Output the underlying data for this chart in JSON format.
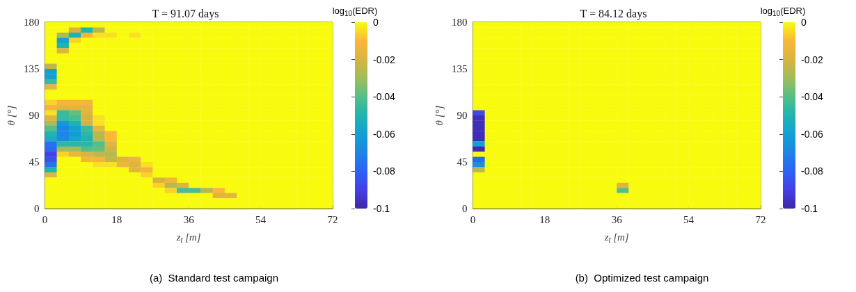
{
  "chart_data": [
    {
      "type": "heatmap",
      "title": "T = 91.07 days",
      "xlabel": "z$_{t}$ [m]",
      "ylabel": "θ [°]",
      "clabel": "log$_{10}$(EDR)",
      "annotations": [
        "(a)  Standard test campaign"
      ],
      "x": [
        1.5,
        4.5,
        7.5,
        10.5,
        13.5,
        16.5,
        19.5,
        22.5,
        25.5,
        28.5,
        31.5,
        34.5,
        37.5,
        40.5,
        43.5,
        46.5,
        49.5,
        52.5,
        55.5,
        58.5,
        61.5,
        64.5,
        67.5,
        70.5
      ],
      "xlim": [
        0,
        72
      ],
      "xticks": [
        0,
        18,
        36,
        54,
        72
      ],
      "ylim": [
        0,
        180
      ],
      "yticks": [
        0,
        45,
        90,
        135,
        180
      ],
      "clim": [
        -0.1,
        0
      ],
      "cticks": [
        0,
        -0.02,
        -0.04,
        -0.06,
        -0.08,
        -0.1
      ],
      "cells": [
        [
          0,
          0,
          0,
          0,
          0,
          0,
          0,
          0,
          0,
          0,
          0,
          0,
          0,
          0,
          0,
          0,
          0,
          0,
          0,
          0,
          0,
          0,
          0,
          0
        ],
        [
          0,
          0,
          -0.02,
          -0.05,
          -0.025,
          0,
          0,
          0,
          0,
          0,
          0,
          0,
          0,
          0,
          0,
          0,
          0,
          0,
          0,
          0,
          0,
          0,
          0,
          0
        ],
        [
          0,
          -0.028,
          -0.05,
          -0.012,
          -0.004,
          -0.004,
          0,
          -0.004,
          0,
          0,
          0,
          0,
          0,
          0,
          0,
          0,
          0,
          0,
          0,
          0,
          0,
          0,
          0,
          0
        ],
        [
          0,
          -0.06,
          -0.006,
          0,
          0,
          0,
          0,
          0,
          0,
          0,
          0,
          0,
          0,
          0,
          0,
          0,
          0,
          0,
          0,
          0,
          0,
          0,
          0,
          0
        ],
        [
          0,
          -0.05,
          0,
          0,
          0,
          0,
          0,
          0,
          0,
          0,
          0,
          0,
          0,
          0,
          0,
          0,
          0,
          0,
          0,
          0,
          0,
          0,
          0,
          0
        ],
        [
          0,
          -0.018,
          0,
          0,
          0,
          0,
          0,
          0,
          0,
          0,
          0,
          0,
          0,
          0,
          0,
          0,
          0,
          0,
          0,
          0,
          0,
          0,
          0,
          0
        ],
        [
          0,
          0,
          0,
          0,
          0,
          0,
          0,
          0,
          0,
          0,
          0,
          0,
          0,
          0,
          0,
          0,
          0,
          0,
          0,
          0,
          0,
          0,
          0,
          0
        ],
        [
          0,
          0,
          0,
          0,
          0,
          0,
          0,
          0,
          0,
          0,
          0,
          0,
          0,
          0,
          0,
          0,
          0,
          0,
          0,
          0,
          0,
          0,
          0,
          0
        ],
        [
          -0.025,
          0,
          0,
          0,
          0,
          0,
          0,
          0,
          0,
          0,
          0,
          0,
          0,
          0,
          0,
          0,
          0,
          0,
          0,
          0,
          0,
          0,
          0,
          0
        ],
        [
          -0.06,
          0,
          0,
          0,
          0,
          0,
          0,
          0,
          0,
          0,
          0,
          0,
          0,
          0,
          0,
          0,
          0,
          0,
          0,
          0,
          0,
          0,
          0,
          0
        ],
        [
          -0.06,
          0,
          0,
          0,
          0,
          0,
          0,
          0,
          0,
          0,
          0,
          0,
          0,
          0,
          0,
          0,
          0,
          0,
          0,
          0,
          0,
          0,
          0,
          0
        ],
        [
          -0.045,
          0,
          0,
          0,
          0,
          0,
          0,
          0,
          0,
          0,
          0,
          0,
          0,
          0,
          0,
          0,
          0,
          0,
          0,
          0,
          0,
          0,
          0,
          0
        ],
        [
          -0.015,
          0,
          0,
          0,
          0,
          0,
          0,
          0,
          0,
          0,
          0,
          0,
          0,
          0,
          0,
          0,
          0,
          0,
          0,
          0,
          0,
          0,
          0,
          0
        ],
        [
          0,
          0,
          0,
          0,
          0,
          0,
          0,
          0,
          0,
          0,
          0,
          0,
          0,
          0,
          0,
          0,
          0,
          0,
          0,
          0,
          0,
          0,
          0,
          0
        ],
        [
          0,
          0,
          0,
          0,
          0,
          0,
          0,
          0,
          0,
          0,
          0,
          0,
          0,
          0,
          0,
          0,
          0,
          0,
          0,
          0,
          0,
          0,
          0,
          0
        ],
        [
          -0.006,
          -0.012,
          -0.012,
          -0.012,
          0,
          0,
          0,
          0,
          0,
          0,
          0,
          0,
          0,
          0,
          0,
          0,
          0,
          0,
          0,
          0,
          0,
          0,
          0,
          0
        ],
        [
          -0.012,
          -0.018,
          -0.018,
          -0.016,
          0,
          0,
          0,
          0,
          0,
          0,
          0,
          0,
          0,
          0,
          0,
          0,
          0,
          0,
          0,
          0,
          0,
          0,
          0,
          0
        ],
        [
          -0.004,
          -0.045,
          -0.038,
          -0.018,
          0,
          0,
          0,
          0,
          0,
          0,
          0,
          0,
          0,
          0,
          0,
          0,
          0,
          0,
          0,
          0,
          0,
          0,
          0,
          0
        ],
        [
          -0.018,
          -0.045,
          -0.042,
          -0.02,
          -0.004,
          0,
          0,
          0,
          0,
          0,
          0,
          0,
          0,
          0,
          0,
          0,
          0,
          0,
          0,
          0,
          0,
          0,
          0,
          0
        ],
        [
          -0.028,
          -0.062,
          -0.05,
          -0.022,
          -0.004,
          0,
          0,
          0,
          0,
          0,
          0,
          0,
          0,
          0,
          0,
          0,
          0,
          0,
          0,
          0,
          0,
          0,
          0,
          0
        ],
        [
          -0.04,
          -0.07,
          -0.06,
          -0.045,
          -0.015,
          0,
          0,
          0,
          0,
          0,
          0,
          0,
          0,
          0,
          0,
          0,
          0,
          0,
          0,
          0,
          0,
          0,
          0,
          0
        ],
        [
          -0.05,
          -0.07,
          -0.062,
          -0.048,
          -0.026,
          -0.01,
          0,
          0,
          0,
          0,
          0,
          0,
          0,
          0,
          0,
          0,
          0,
          0,
          0,
          0,
          0,
          0,
          0,
          0
        ],
        [
          -0.055,
          -0.068,
          -0.058,
          -0.05,
          -0.026,
          -0.01,
          0,
          0,
          0,
          0,
          0,
          0,
          0,
          0,
          0,
          0,
          0,
          0,
          0,
          0,
          0,
          0,
          0,
          0
        ],
        [
          -0.075,
          -0.048,
          -0.048,
          -0.048,
          -0.04,
          -0.018,
          0,
          0,
          0,
          0,
          0,
          0,
          0,
          0,
          0,
          0,
          0,
          0,
          0,
          0,
          0,
          0,
          0,
          0
        ],
        [
          -0.078,
          -0.03,
          -0.03,
          -0.04,
          -0.038,
          -0.022,
          0,
          0,
          0,
          0,
          0,
          0,
          0,
          0,
          0,
          0,
          0,
          0,
          0,
          0,
          0,
          0,
          0,
          0
        ],
        [
          -0.09,
          -0.006,
          -0.014,
          -0.02,
          -0.025,
          -0.026,
          0,
          0,
          0,
          0,
          0,
          0,
          0,
          0,
          0,
          0,
          0,
          0,
          0,
          0,
          0,
          0,
          0,
          0
        ],
        [
          -0.085,
          0,
          0,
          -0.012,
          -0.012,
          -0.024,
          -0.018,
          -0.014,
          0,
          0,
          0,
          0,
          0,
          0,
          0,
          0,
          0,
          0,
          0,
          0,
          0,
          0,
          0,
          0
        ],
        [
          -0.075,
          0,
          0,
          0,
          -0.004,
          -0.004,
          -0.014,
          -0.018,
          -0.004,
          0,
          0,
          0,
          0,
          0,
          0,
          0,
          0,
          0,
          0,
          0,
          0,
          0,
          0,
          0
        ],
        [
          -0.05,
          0,
          0,
          0,
          0,
          0,
          0,
          -0.016,
          -0.012,
          0,
          0,
          0,
          0,
          0,
          0,
          0,
          0,
          0,
          0,
          0,
          0,
          0,
          0,
          0
        ],
        [
          -0.018,
          0,
          0,
          0,
          0,
          0,
          0,
          0,
          -0.006,
          0,
          0,
          0,
          0,
          0,
          0,
          0,
          0,
          0,
          0,
          0,
          0,
          0,
          0,
          0
        ],
        [
          0,
          0,
          0,
          0,
          0,
          0,
          0,
          0,
          0,
          -0.02,
          -0.012,
          0,
          0,
          0,
          0,
          0,
          0,
          0,
          0,
          0,
          0,
          0,
          0,
          0
        ],
        [
          0,
          0,
          0,
          0,
          0,
          0,
          0,
          0,
          0,
          -0.006,
          -0.026,
          -0.018,
          0,
          0,
          0,
          0,
          0,
          0,
          0,
          0,
          0,
          0,
          0,
          0
        ],
        [
          0,
          0,
          0,
          0,
          0,
          0,
          0,
          0,
          0,
          0,
          -0.006,
          -0.042,
          -0.042,
          -0.025,
          -0.01,
          0,
          0,
          0,
          0,
          0,
          0,
          0,
          0,
          0
        ],
        [
          0,
          0,
          0,
          0,
          0,
          0,
          0,
          0,
          0,
          0,
          0,
          0,
          0,
          0,
          -0.018,
          -0.016,
          0,
          0,
          0,
          0,
          0,
          0,
          0,
          0
        ],
        [
          0,
          0,
          0,
          0,
          0,
          0,
          0,
          0,
          0,
          0,
          0,
          0,
          0,
          0,
          0,
          0,
          0,
          0,
          0,
          0,
          0,
          0,
          0,
          0
        ],
        [
          0,
          0,
          0,
          0,
          0,
          0,
          0,
          0,
          0,
          0,
          0,
          0,
          0,
          0,
          0,
          0,
          0,
          0,
          0,
          0,
          0,
          0,
          0,
          0
        ]
      ]
    },
    {
      "type": "heatmap",
      "title": "T = 84.12 days",
      "xlabel": "z$_{t}$ [m]",
      "ylabel": "θ [°]",
      "clabel": "log$_{10}$(EDR)",
      "annotations": [
        "(b)  Optimized test campaign"
      ],
      "x": [
        1.5,
        4.5,
        7.5,
        10.5,
        13.5,
        16.5,
        19.5,
        22.5,
        25.5,
        28.5,
        31.5,
        34.5,
        37.5,
        40.5,
        43.5,
        46.5,
        49.5,
        52.5,
        55.5,
        58.5,
        61.5,
        64.5,
        67.5,
        70.5
      ],
      "xlim": [
        0,
        72
      ],
      "xticks": [
        0,
        18,
        36,
        54,
        72
      ],
      "ylim": [
        0,
        180
      ],
      "yticks": [
        0,
        45,
        90,
        135,
        180
      ],
      "clim": [
        -0.1,
        0
      ],
      "cticks": [
        0,
        -0.02,
        -0.04,
        -0.06,
        -0.08,
        -0.1
      ],
      "cells": [
        [
          0,
          0,
          0,
          0,
          0,
          0,
          0,
          0,
          0,
          0,
          0,
          0,
          0,
          0,
          0,
          0,
          0,
          0,
          0,
          0,
          0,
          0,
          0,
          0
        ],
        [
          0,
          0,
          0,
          0,
          0,
          0,
          0,
          0,
          0,
          0,
          0,
          0,
          0,
          0,
          0,
          0,
          0,
          0,
          0,
          0,
          0,
          0,
          0,
          0
        ],
        [
          0,
          0,
          0,
          0,
          0,
          0,
          0,
          0,
          0,
          0,
          0,
          0,
          0,
          0,
          0,
          0,
          0,
          0,
          0,
          0,
          0,
          0,
          0,
          0
        ],
        [
          0,
          0,
          0,
          0,
          0,
          0,
          0,
          0,
          0,
          0,
          0,
          0,
          0,
          0,
          0,
          0,
          0,
          0,
          0,
          0,
          0,
          0,
          0,
          0
        ],
        [
          0,
          0,
          0,
          0,
          0,
          0,
          0,
          0,
          0,
          0,
          0,
          0,
          0,
          0,
          0,
          0,
          0,
          0,
          0,
          0,
          0,
          0,
          0,
          0
        ],
        [
          0,
          0,
          0,
          0,
          0,
          0,
          0,
          0,
          0,
          0,
          0,
          0,
          0,
          0,
          0,
          0,
          0,
          0,
          0,
          0,
          0,
          0,
          0,
          0
        ],
        [
          0,
          0,
          0,
          0,
          0,
          0,
          0,
          0,
          0,
          0,
          0,
          0,
          0,
          0,
          0,
          0,
          0,
          0,
          0,
          0,
          0,
          0,
          0,
          0
        ],
        [
          0,
          0,
          0,
          0,
          0,
          0,
          0,
          0,
          0,
          0,
          0,
          0,
          0,
          0,
          0,
          0,
          0,
          0,
          0,
          0,
          0,
          0,
          0,
          0
        ],
        [
          0,
          0,
          0,
          0,
          0,
          0,
          0,
          0,
          0,
          0,
          0,
          0,
          0,
          0,
          0,
          0,
          0,
          0,
          0,
          0,
          0,
          0,
          0,
          0
        ],
        [
          0,
          0,
          0,
          0,
          0,
          0,
          0,
          0,
          0,
          0,
          0,
          0,
          0,
          0,
          0,
          0,
          0,
          0,
          0,
          0,
          0,
          0,
          0,
          0
        ],
        [
          0,
          0,
          0,
          0,
          0,
          0,
          0,
          0,
          0,
          0,
          0,
          0,
          0,
          0,
          0,
          0,
          0,
          0,
          0,
          0,
          0,
          0,
          0,
          0
        ],
        [
          0,
          0,
          0,
          0,
          0,
          0,
          0,
          0,
          0,
          0,
          0,
          0,
          0,
          0,
          0,
          0,
          0,
          0,
          0,
          0,
          0,
          0,
          0,
          0
        ],
        [
          0,
          0,
          0,
          0,
          0,
          0,
          0,
          0,
          0,
          0,
          0,
          0,
          0,
          0,
          0,
          0,
          0,
          0,
          0,
          0,
          0,
          0,
          0,
          0
        ],
        [
          0,
          0,
          0,
          0,
          0,
          0,
          0,
          0,
          0,
          0,
          0,
          0,
          0,
          0,
          0,
          0,
          0,
          0,
          0,
          0,
          0,
          0,
          0,
          0
        ],
        [
          0,
          0,
          0,
          0,
          0,
          0,
          0,
          0,
          0,
          0,
          0,
          0,
          0,
          0,
          0,
          0,
          0,
          0,
          0,
          0,
          0,
          0,
          0,
          0
        ],
        [
          0,
          0,
          0,
          0,
          0,
          0,
          0,
          0,
          0,
          0,
          0,
          0,
          0,
          0,
          0,
          0,
          0,
          0,
          0,
          0,
          0,
          0,
          0,
          0
        ],
        [
          0,
          0,
          0,
          0,
          0,
          0,
          0,
          0,
          0,
          0,
          0,
          0,
          0,
          0,
          0,
          0,
          0,
          0,
          0,
          0,
          0,
          0,
          0,
          0
        ],
        [
          -0.088,
          0,
          0,
          0,
          0,
          0,
          0,
          0,
          0,
          0,
          0,
          0,
          0,
          0,
          0,
          0,
          0,
          0,
          0,
          0,
          0,
          0,
          0,
          0
        ],
        [
          -0.097,
          0,
          0,
          0,
          0,
          0,
          0,
          0,
          0,
          0,
          0,
          0,
          0,
          0,
          0,
          0,
          0,
          0,
          0,
          0,
          0,
          0,
          0,
          0
        ],
        [
          -0.097,
          0,
          0,
          0,
          0,
          0,
          0,
          0,
          0,
          0,
          0,
          0,
          0,
          0,
          0,
          0,
          0,
          0,
          0,
          0,
          0,
          0,
          0,
          0
        ],
        [
          -0.097,
          0,
          0,
          0,
          0,
          0,
          0,
          0,
          0,
          0,
          0,
          0,
          0,
          0,
          0,
          0,
          0,
          0,
          0,
          0,
          0,
          0,
          0,
          0
        ],
        [
          -0.097,
          0,
          0,
          0,
          0,
          0,
          0,
          0,
          0,
          0,
          0,
          0,
          0,
          0,
          0,
          0,
          0,
          0,
          0,
          0,
          0,
          0,
          0,
          0
        ],
        [
          -0.097,
          0,
          0,
          0,
          0,
          0,
          0,
          0,
          0,
          0,
          0,
          0,
          0,
          0,
          0,
          0,
          0,
          0,
          0,
          0,
          0,
          0,
          0,
          0
        ],
        [
          -0.06,
          0,
          0,
          0,
          0,
          0,
          0,
          0,
          0,
          0,
          0,
          0,
          0,
          0,
          0,
          0,
          0,
          0,
          0,
          0,
          0,
          0,
          0,
          0
        ],
        [
          -0.098,
          0,
          0,
          0,
          0,
          0,
          0,
          0,
          0,
          0,
          0,
          0,
          0,
          0,
          0,
          0,
          0,
          0,
          0,
          0,
          0,
          0,
          0,
          0
        ],
        [
          0,
          0,
          0,
          0,
          0,
          0,
          0,
          0,
          0,
          0,
          0,
          0,
          0,
          0,
          0,
          0,
          0,
          0,
          0,
          0,
          0,
          0,
          0,
          0
        ],
        [
          -0.078,
          0,
          0,
          0,
          0,
          0,
          0,
          0,
          0,
          0,
          0,
          0,
          0,
          0,
          0,
          0,
          0,
          0,
          0,
          0,
          0,
          0,
          0,
          0
        ],
        [
          -0.065,
          0,
          0,
          0,
          0,
          0,
          0,
          0,
          0,
          0,
          0,
          0,
          0,
          0,
          0,
          0,
          0,
          0,
          0,
          0,
          0,
          0,
          0,
          0
        ],
        [
          -0.025,
          0,
          0,
          0,
          0,
          0,
          0,
          0,
          0,
          0,
          0,
          0,
          0,
          0,
          0,
          0,
          0,
          0,
          0,
          0,
          0,
          0,
          0,
          0
        ],
        [
          0,
          0,
          0,
          0,
          0,
          0,
          0,
          0,
          0,
          0,
          0,
          0,
          0,
          0,
          0,
          0,
          0,
          0,
          0,
          0,
          0,
          0,
          0,
          0
        ],
        [
          0,
          0,
          0,
          0,
          0,
          0,
          0,
          0,
          0,
          0,
          0,
          0,
          0,
          0,
          0,
          0,
          0,
          0,
          0,
          0,
          0,
          0,
          0,
          0
        ],
        [
          0,
          0,
          0,
          0,
          0,
          0,
          0,
          0,
          0,
          0,
          0,
          0,
          -0.018,
          0,
          0,
          0,
          0,
          0,
          0,
          0,
          0,
          0,
          0,
          0
        ],
        [
          0,
          0,
          0,
          0,
          0,
          0,
          0,
          0,
          0,
          0,
          0,
          0,
          -0.04,
          0,
          0,
          0,
          0,
          0,
          0,
          0,
          0,
          0,
          0,
          0
        ],
        [
          0,
          0,
          0,
          0,
          0,
          0,
          0,
          0,
          0,
          0,
          0,
          0,
          0,
          0,
          0,
          0,
          0,
          0,
          0,
          0,
          0,
          0,
          0,
          0
        ],
        [
          0,
          0,
          0,
          0,
          0,
          0,
          0,
          0,
          0,
          0,
          0,
          0,
          0,
          0,
          0,
          0,
          0,
          0,
          0,
          0,
          0,
          0,
          0,
          0
        ],
        [
          0,
          0,
          0,
          0,
          0,
          0,
          0,
          0,
          0,
          0,
          0,
          0,
          0,
          0,
          0,
          0,
          0,
          0,
          0,
          0,
          0,
          0,
          0,
          0
        ]
      ]
    }
  ]
}
